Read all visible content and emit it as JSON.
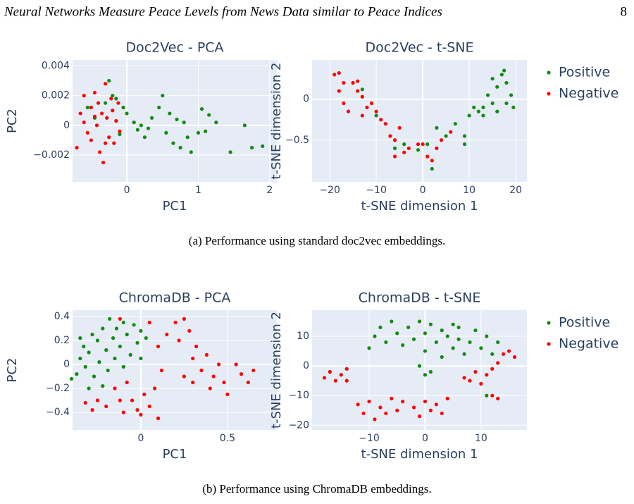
{
  "header": {
    "title": "Neural Networks Measure Peace Levels from News Data similar to Peace Indices",
    "page_number": 8
  },
  "captions": [
    "(a) Performance using standard doc2vec embeddings.",
    "(b) Performance using ChromaDB embeddings."
  ],
  "chart_data": [
    {
      "type": "scatter",
      "title": "Doc2Vec - PCA",
      "x_label": "PC1",
      "y_label": "PC2",
      "grid": true,
      "legend": false,
      "xlim": [
        -0.76,
        2.1
      ],
      "ylim": [
        -0.0038,
        0.0044
      ],
      "xticks": [
        0,
        1,
        2
      ],
      "yticks": [
        {
          "value": -0.002,
          "label": "−0.002"
        },
        0,
        0.002,
        0.004
      ],
      "series": [
        {
          "color": "#138a13",
          "x": [
            -0.55,
            -0.45,
            -0.3,
            -0.25,
            -0.2,
            -0.15,
            -0.05,
            0,
            0.1,
            0.15,
            0.2,
            0.3,
            0.35,
            0.45,
            0.5,
            0.55,
            0.6,
            0.65,
            0.7,
            0.75,
            0.8,
            0.85,
            0.9,
            1.0,
            1.05,
            1.1,
            1.15,
            1.25,
            1.45,
            1.65,
            1.75,
            1.9,
            -0.1,
            0.25
          ],
          "y": [
            0.0012,
            0.0005,
            0.0015,
            0.003,
            0.002,
            0.0018,
            0.0012,
            0.0008,
            0.0002,
            -0.0003,
            0,
            -0.0002,
            0.0005,
            0.0012,
            0.002,
            -0.0005,
            0.0008,
            -0.0012,
            0.0004,
            -0.0015,
            0.0002,
            -0.0008,
            -0.0018,
            -0.0005,
            0.0011,
            -0.0004,
            0.0007,
            0.0002,
            -0.0018,
            0,
            -0.0015,
            -0.0014,
            -0.0006,
            -0.0008
          ]
        },
        {
          "color": "#ff0000",
          "x": [
            -0.7,
            -0.65,
            -0.6,
            -0.55,
            -0.5,
            -0.5,
            -0.45,
            -0.42,
            -0.4,
            -0.38,
            -0.35,
            -0.33,
            -0.3,
            -0.28,
            -0.25,
            -0.22,
            -0.2,
            -0.18,
            -0.15,
            -0.12,
            -0.1,
            -0.3,
            -0.45,
            -0.6
          ],
          "y": [
            -0.0015,
            0.0008,
            0.002,
            -0.0005,
            0.0012,
            -0.001,
            0.0022,
            0,
            0.0015,
            -0.0018,
            0.0008,
            -0.0025,
            0.0028,
            0.0005,
            -0.0008,
            0.0018,
            0.001,
            -0.0012,
            0.0003,
            0.0015,
            -0.0004,
            -0.0012,
            0.0006,
            0.0002
          ]
        }
      ]
    },
    {
      "type": "scatter",
      "title": "Doc2Vec - t-SNE",
      "x_label": "t-SNE dimension 1",
      "y_label": "t-SNE dimension 2",
      "grid": true,
      "legend": "right",
      "xlim": [
        -23.8,
        22.4
      ],
      "ylim": [
        -1.01,
        0.48
      ],
      "xticks": [
        {
          "value": -20,
          "label": "−20"
        },
        {
          "value": -10,
          "label": "−10"
        },
        0,
        10,
        20
      ],
      "yticks": [
        {
          "value": -0.5,
          "label": "−0.5"
        },
        0
      ],
      "series": [
        {
          "name": "Positive",
          "color": "#138a13",
          "x": [
            -13,
            -10,
            -6,
            -4,
            -1,
            1,
            2,
            3,
            5,
            7,
            9,
            9,
            10,
            11,
            12,
            13,
            14,
            15,
            16,
            17,
            17.5,
            18,
            19,
            19.5,
            18,
            15,
            13,
            16
          ],
          "y": [
            0.12,
            -0.2,
            -0.6,
            -0.55,
            -0.62,
            -0.55,
            -0.85,
            -0.35,
            -0.45,
            -0.3,
            -0.45,
            -0.55,
            -0.2,
            -0.1,
            -0.15,
            -0.1,
            0.05,
            -0.05,
            0.15,
            0.3,
            0.35,
            0.2,
            0.05,
            -0.1,
            -0.05,
            0.25,
            -0.2,
            -0.15
          ]
        },
        {
          "name": "Negative",
          "color": "#ff0000",
          "x": [
            -19,
            -18,
            -17,
            -18,
            -17,
            -16,
            -15,
            -14,
            -13,
            -12,
            -11,
            -10,
            -9,
            -8,
            -7,
            -6,
            -6,
            -5,
            -4,
            -3,
            -1,
            0,
            1,
            2,
            3,
            4,
            6,
            -14,
            -13
          ],
          "y": [
            0.3,
            0.32,
            0.2,
            0.1,
            -0.05,
            -0.15,
            0.2,
            0.1,
            -0.2,
            -0.1,
            -0.05,
            -0.15,
            -0.25,
            -0.3,
            -0.45,
            -0.5,
            -0.7,
            -0.35,
            -0.65,
            -0.6,
            -0.55,
            -0.55,
            -0.7,
            -0.75,
            -0.6,
            -0.5,
            -0.4,
            0.22,
            0.03
          ]
        }
      ]
    },
    {
      "type": "scatter",
      "title": "ChromaDB - PCA",
      "x_label": "PC1",
      "y_label": "PC2",
      "grid": true,
      "legend": false,
      "xlim": [
        -0.394,
        0.785
      ],
      "ylim": [
        -0.547,
        0.453
      ],
      "xticks": [
        0,
        0.5
      ],
      "yticks": [
        {
          "value": -0.4,
          "label": "−0.4"
        },
        {
          "value": -0.2,
          "label": "−0.2"
        },
        0,
        0.2,
        0.4
      ],
      "series": [
        {
          "color": "#138a13",
          "x": [
            -0.4,
            -0.37,
            -0.35,
            -0.33,
            -0.32,
            -0.3,
            -0.28,
            -0.27,
            -0.25,
            -0.24,
            -0.22,
            -0.2,
            -0.19,
            -0.18,
            -0.16,
            -0.15,
            -0.14,
            -0.12,
            -0.1,
            -0.08,
            -0.06,
            -0.04,
            -0.02,
            0,
            0.03,
            -0.3,
            -0.22,
            -0.1,
            0,
            -0.35
          ],
          "y": [
            -0.12,
            -0.08,
            0.05,
            0.15,
            -0.02,
            0.1,
            0.25,
            -0.1,
            0.2,
            0.02,
            0.3,
            0.12,
            -0.05,
            0.38,
            0.22,
            0.05,
            0.3,
            0.15,
            -0.02,
            0.25,
            0.08,
            0.33,
            0.18,
            0.05,
            0.22,
            -0.2,
            -0.18,
            0.35,
            0.28,
            0.22
          ]
        },
        {
          "color": "#ff0000",
          "x": [
            -0.32,
            -0.28,
            -0.25,
            -0.2,
            -0.15,
            -0.12,
            -0.1,
            -0.08,
            -0.05,
            -0.02,
            0,
            0.02,
            0.05,
            0.08,
            0.1,
            -0.12,
            0.1,
            0.12,
            0.15,
            0.2,
            0.22,
            0.25,
            0.28,
            0.3,
            0.32,
            0.3,
            0.35,
            0.38,
            0.4,
            0.42,
            0.45,
            0.48,
            0.55,
            0.58,
            0.62,
            0.65,
            0.5,
            0.25,
            0.05
          ],
          "y": [
            -0.32,
            -0.38,
            -0.3,
            -0.35,
            -0.2,
            -0.3,
            -0.4,
            -0.15,
            -0.3,
            -0.38,
            -0.42,
            -0.25,
            -0.35,
            -0.2,
            -0.45,
            0.38,
            0.15,
            -0.05,
            0.25,
            0.35,
            0.2,
            0.38,
            0.28,
            0.05,
            0.15,
            -0.15,
            -0.05,
            0.08,
            -0.2,
            -0.1,
            0,
            -0.15,
            0,
            -0.08,
            -0.15,
            -0.05,
            -0.25,
            -0.1,
            0.35
          ]
        }
      ]
    },
    {
      "type": "scatter",
      "title": "ChromaDB - t-SNE",
      "x_label": "t-SNE dimension 1",
      "y_label": "t-SNE dimension 2",
      "grid": true,
      "legend": "right",
      "xlim": [
        -20.2,
        18.2
      ],
      "ylim": [
        -21.6,
        18.8
      ],
      "xticks": [
        {
          "value": -10,
          "label": "−10"
        },
        0,
        10
      ],
      "yticks": [
        {
          "value": -20,
          "label": "−20"
        },
        {
          "value": -10,
          "label": "−10"
        },
        0,
        10
      ],
      "series": [
        {
          "name": "Positive",
          "color": "#138a13",
          "x": [
            -10,
            -9,
            -8,
            -7,
            -6,
            -5,
            -4,
            -3,
            -2,
            -1,
            0,
            0,
            1,
            1,
            2,
            3,
            3,
            4,
            5,
            6,
            6,
            7,
            8,
            9,
            10,
            11,
            12,
            13,
            11,
            0,
            -1,
            5
          ],
          "y": [
            6,
            10,
            13,
            8,
            15,
            11,
            7,
            13,
            9,
            15,
            11,
            5,
            14,
            -2,
            8,
            12,
            3,
            10,
            6,
            9,
            13,
            4,
            8,
            12,
            6,
            10,
            4,
            8,
            -10,
            -3,
            0,
            14
          ]
        },
        {
          "name": "Negative",
          "color": "#ff0000",
          "x": [
            -18,
            -17,
            -16,
            -15,
            -14,
            -14,
            -12,
            -11,
            -10,
            -9,
            -8,
            -7,
            -6,
            -5,
            -4,
            -2,
            -1,
            0,
            1,
            2,
            3,
            4,
            7,
            8,
            9,
            10,
            11,
            12,
            13,
            14,
            15,
            16,
            13,
            12
          ],
          "y": [
            -4,
            -2,
            -5,
            -3,
            -1,
            -5,
            -13,
            -16,
            -12,
            -18,
            -14,
            -16,
            -11,
            -15,
            -12,
            -14,
            -17,
            -12,
            -15,
            -13,
            -16,
            -11,
            -4,
            -5,
            -2,
            -6,
            -3,
            -1,
            1,
            4,
            5,
            3,
            -11,
            -10
          ]
        }
      ]
    }
  ]
}
